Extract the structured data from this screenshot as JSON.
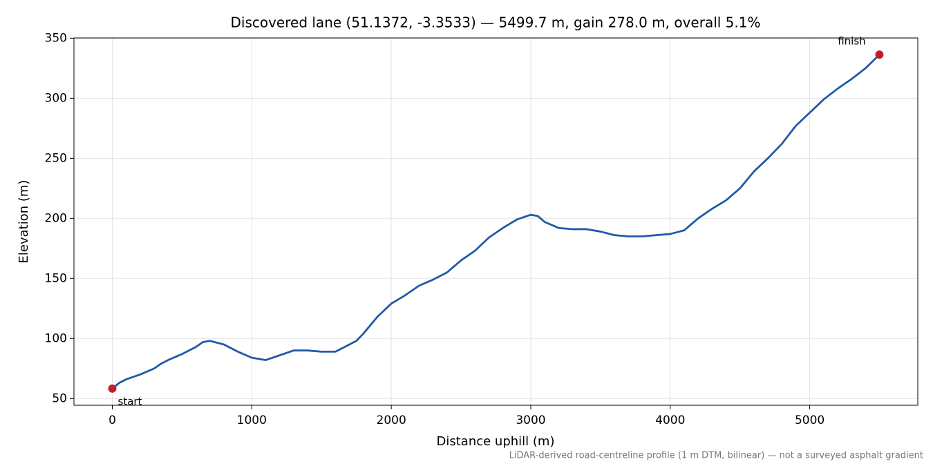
{
  "chart_data": {
    "type": "line",
    "title": "Discovered lane (51.1372, -3.3533) — 5499.7 m, gain 278.0 m, overall 5.1%",
    "x_label": "Distance uphill (m)",
    "y_label": "Elevation (m)",
    "note": "LiDAR-derived road-centreline profile (1 m DTM, bilinear) — not a surveyed asphalt gradient",
    "annotations": [
      "start",
      "finish"
    ],
    "color": "#1f5aa8",
    "marker_color": "#c41e2a",
    "grid": true,
    "xlim": [
      -275,
      5775
    ],
    "ylim": [
      44.4,
      350.2
    ],
    "xticks": [
      0,
      1000,
      2000,
      3000,
      4000,
      5000
    ],
    "yticks": [
      50,
      100,
      150,
      200,
      250,
      300,
      350
    ],
    "x": [
      0,
      50,
      100,
      200,
      300,
      350,
      400,
      500,
      600,
      650,
      700,
      800,
      900,
      1000,
      1100,
      1200,
      1300,
      1400,
      1500,
      1600,
      1700,
      1750,
      1800,
      1900,
      2000,
      2100,
      2200,
      2300,
      2400,
      2500,
      2600,
      2700,
      2800,
      2900,
      3000,
      3050,
      3100,
      3200,
      3300,
      3400,
      3500,
      3600,
      3700,
      3800,
      3900,
      4000,
      4100,
      4200,
      4300,
      4400,
      4500,
      4600,
      4700,
      4800,
      4900,
      5000,
      5100,
      5200,
      5300,
      5400,
      5499.7
    ],
    "values": [
      58.3,
      63,
      66,
      70,
      75,
      79,
      82,
      87,
      93,
      97,
      98,
      95,
      89,
      84,
      82,
      86,
      90,
      90,
      89,
      89,
      95,
      98,
      104,
      118,
      129,
      136,
      144,
      149,
      155,
      165,
      173,
      184,
      192,
      199,
      203,
      202,
      197,
      192,
      191,
      191,
      189,
      186,
      185,
      185,
      186,
      187,
      190,
      200,
      208,
      215,
      225,
      239,
      250,
      262,
      277,
      288,
      299,
      308,
      316,
      325,
      336.3
    ]
  }
}
